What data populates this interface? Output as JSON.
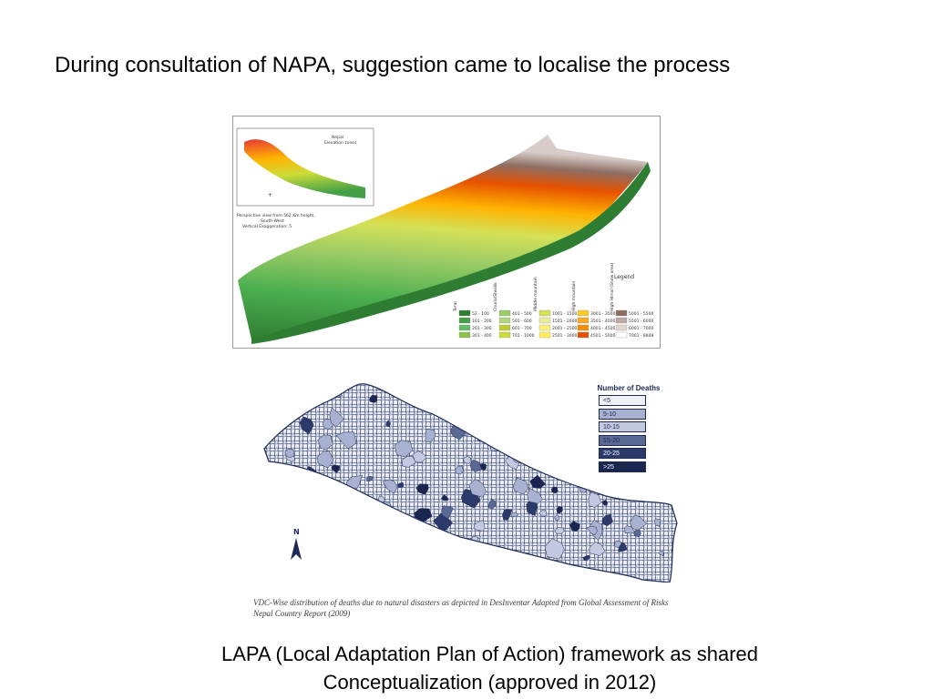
{
  "slide": {
    "title": "During consultation of NAPA, suggestion came to localise the process",
    "bottom_text_line1": "LAPA (Local Adaptation Plan of Action) framework as shared",
    "bottom_text_line2": "Conceptualization (approved in 2012)"
  },
  "elevation_map": {
    "inset_title_line1": "Nepal",
    "inset_title_line2": "Elevation zones",
    "perspective_line1": "Perspective view from 562 Km height,",
    "perspective_line2": "South-West",
    "perspective_line3": "Vertical Exaggeration: 5",
    "legend_title": "Legend",
    "zone_labels": [
      "Terai",
      "Churia/Siwalik",
      "Middle mountain",
      "High mountain",
      "High Himal (Snow area)"
    ],
    "legend_entries": [
      {
        "label": "52 - 100",
        "color": "#2e7d32"
      },
      {
        "label": "101 - 200",
        "color": "#43a047"
      },
      {
        "label": "201 - 300",
        "color": "#66bb6a"
      },
      {
        "label": "301 - 400",
        "color": "#8bc34a"
      },
      {
        "label": "401 - 500",
        "color": "#9ccc65"
      },
      {
        "label": "501 - 600",
        "color": "#aed581"
      },
      {
        "label": "601 - 700",
        "color": "#c0ca33"
      },
      {
        "label": "701 - 1000",
        "color": "#cddc39"
      },
      {
        "label": "1001 - 1500",
        "color": "#d4e157"
      },
      {
        "label": "1501 - 2000",
        "color": "#e6ee9c"
      },
      {
        "label": "2001 - 2500",
        "color": "#fff176"
      },
      {
        "label": "2501 - 3000",
        "color": "#ffee58"
      },
      {
        "label": "3001 - 3500",
        "color": "#ffca28"
      },
      {
        "label": "3501 - 4000",
        "color": "#ffa726"
      },
      {
        "label": "4001 - 4500",
        "color": "#fb8c00"
      },
      {
        "label": "4501 - 5000",
        "color": "#e65100"
      },
      {
        "label": "5001 - 5500",
        "color": "#8d6e63"
      },
      {
        "label": "5501 - 6000",
        "color": "#bcaaa4"
      },
      {
        "label": "6001 - 7000",
        "color": "#e0d6d0"
      },
      {
        "label": "7001 - 8848",
        "color": "#ffffff"
      }
    ]
  },
  "deaths_map": {
    "legend_title": "Number of Deaths",
    "legend": [
      {
        "label": "<5",
        "color": "#eef0f8",
        "text": "#1c2a55"
      },
      {
        "label": "5-10",
        "color": "#a9b1d1",
        "text": "#1c2a55"
      },
      {
        "label": "10-15",
        "color": "#c3c9e0",
        "text": "#1c2a55"
      },
      {
        "label": "15-20",
        "color": "#5a6894",
        "text": "#1c2a55"
      },
      {
        "label": "20-25",
        "color": "#2c3a6a",
        "text": "#ffffff"
      },
      {
        "label": ">25",
        "color": "#1a2550",
        "text": "#ffffff"
      }
    ],
    "north_label": "N",
    "caption": "VDC-Wise distribution of deaths due to natural disasters as depicted in DesInventar Adapted from Global Assessment of Risks Nepal Country Report (2009)"
  }
}
